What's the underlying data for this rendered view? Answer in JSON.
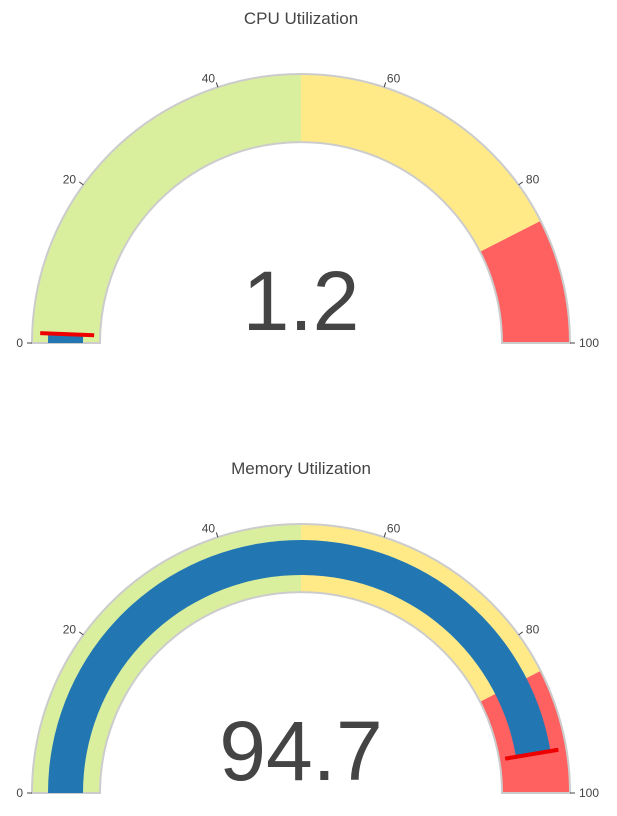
{
  "chart_data": [
    {
      "type": "gauge",
      "title": "CPU Utilization",
      "value": 1.2,
      "value_label": "1.2",
      "range": [
        0,
        100
      ],
      "ticks": [
        0,
        20,
        40,
        60,
        80,
        100
      ],
      "tick_labels": [
        "0",
        "20",
        "40",
        "60",
        "80",
        "100"
      ],
      "threshold": 1.2,
      "steps": [
        {
          "range": [
            0,
            50
          ],
          "color": "#d9ef9e"
        },
        {
          "range": [
            50,
            85
          ],
          "color": "#ffea87"
        },
        {
          "range": [
            85,
            100
          ],
          "color": "#ff6060"
        }
      ],
      "bar_color": "#2277b3",
      "threshold_color": "#ee0000",
      "border_color": "#cccccc"
    },
    {
      "type": "gauge",
      "title": "Memory Utilization",
      "value": 94.7,
      "value_label": "94.7",
      "range": [
        0,
        100
      ],
      "ticks": [
        0,
        20,
        40,
        60,
        80,
        100
      ],
      "tick_labels": [
        "0",
        "20",
        "40",
        "60",
        "80",
        "100"
      ],
      "threshold": 94.7,
      "steps": [
        {
          "range": [
            0,
            50
          ],
          "color": "#d9ef9e"
        },
        {
          "range": [
            50,
            85
          ],
          "color": "#ffea87"
        },
        {
          "range": [
            85,
            100
          ],
          "color": "#ff6060"
        }
      ],
      "bar_color": "#2277b3",
      "threshold_color": "#ee0000",
      "border_color": "#cccccc"
    }
  ]
}
